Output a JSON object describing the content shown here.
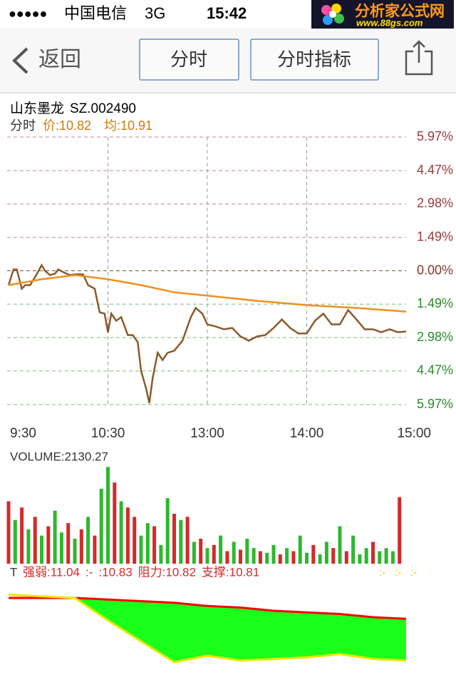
{
  "status_bar": {
    "signal": "●●●●●",
    "carrier": "中国电信",
    "network": "3G",
    "time": "15:42"
  },
  "logo": {
    "title": "分析家公式网",
    "url": "www.88gs.com"
  },
  "nav": {
    "back": "返回",
    "tabs": [
      "分时",
      "分时指标"
    ]
  },
  "stock": {
    "name": "山东墨龙",
    "code": "SZ.002490",
    "mode": "分时",
    "price_label": "价:10.82",
    "avg_label": "均:10.91"
  },
  "chart_data": [
    {
      "type": "line",
      "xlim": [
        0,
        240
      ],
      "ylim": [
        -5.97,
        5.97
      ],
      "grid": true,
      "tick_colors": {
        "up": "#9b3a3a",
        "flat": "#7a3a2a",
        "down": "#2a8a2a"
      },
      "xticks": [
        {
          "value": 0,
          "label": "9:30"
        },
        {
          "value": 60,
          "label": "10:30"
        },
        {
          "value": 120,
          "label": "13:00"
        },
        {
          "value": 180,
          "label": "14:00"
        },
        {
          "value": 240,
          "label": "15:00"
        }
      ],
      "yticks": [
        {
          "value": 5.97,
          "label": "5.97%"
        },
        {
          "value": 4.47,
          "label": "4.47%"
        },
        {
          "value": 2.98,
          "label": "2.98%"
        },
        {
          "value": 1.49,
          "label": "1.49%"
        },
        {
          "value": 0,
          "label": "0.00%"
        },
        {
          "value": -1.49,
          "label": "1.49%"
        },
        {
          "value": -2.98,
          "label": "2.98%"
        },
        {
          "value": -4.47,
          "label": "4.47%"
        },
        {
          "value": -5.97,
          "label": "5.97%"
        }
      ],
      "series": [
        {
          "color": "#8b5a2b",
          "x": [
            0,
            3,
            5,
            8,
            10,
            13,
            17,
            20,
            22,
            25,
            28,
            30,
            33,
            37,
            40,
            45,
            48,
            52,
            55,
            58,
            60,
            62,
            65,
            68,
            72,
            75,
            78,
            80,
            83,
            85,
            87,
            90,
            93,
            96,
            100,
            105,
            110,
            113,
            117,
            120,
            125,
            130,
            135,
            140,
            145,
            150,
            155,
            160,
            165,
            170,
            175,
            180,
            185,
            190,
            195,
            200,
            205,
            210,
            215,
            220,
            225,
            230,
            235,
            240
          ],
          "values": [
            -0.64,
            0.06,
            0.06,
            -0.8,
            -0.64,
            -0.64,
            -0.16,
            0.25,
            0,
            -0.19,
            -0.13,
            0.06,
            -0.06,
            -0.19,
            -0.16,
            -0.16,
            -0.64,
            -0.8,
            -1.85,
            -1.91,
            -2.74,
            -1.91,
            -2.23,
            -2.07,
            -2.87,
            -2.87,
            -3.18,
            -4.46,
            -5.25,
            -5.9,
            -4.78,
            -3.66,
            -3.98,
            -3.66,
            -3.57,
            -3.12,
            -2.07,
            -1.66,
            -1.91,
            -2.39,
            -2.48,
            -2.61,
            -2.55,
            -2.93,
            -3.12,
            -2.93,
            -2.87,
            -2.55,
            -2.17,
            -2.55,
            -2.8,
            -2.8,
            -2.23,
            -1.91,
            -2.39,
            -2.39,
            -1.75,
            -2.17,
            -2.61,
            -2.61,
            -2.74,
            -2.61,
            -2.74,
            -2.71
          ]
        },
        {
          "color": "#f0901e",
          "x": [
            0,
            20,
            40,
            60,
            80,
            90,
            100,
            120,
            150,
            180,
            210,
            240
          ],
          "values": [
            -0.64,
            -0.38,
            -0.19,
            -0.38,
            -0.64,
            -0.8,
            -0.96,
            -1.11,
            -1.34,
            -1.53,
            -1.66,
            -1.82
          ]
        }
      ]
    },
    {
      "type": "bar",
      "title": "VOLUME:2130.27",
      "xlim": [
        0,
        240
      ],
      "ylim": [
        0,
        3200
      ],
      "x": [
        0,
        4,
        8,
        12,
        16,
        20,
        24,
        28,
        32,
        36,
        40,
        44,
        48,
        52,
        56,
        60,
        64,
        68,
        72,
        76,
        80,
        84,
        88,
        92,
        96,
        100,
        104,
        108,
        112,
        116,
        120,
        124,
        128,
        132,
        136,
        140,
        144,
        148,
        152,
        156,
        160,
        164,
        168,
        172,
        176,
        180,
        184,
        188,
        192,
        196,
        200,
        204,
        208,
        212,
        216,
        220,
        224,
        228,
        232,
        236
      ],
      "values": [
        2000,
        1400,
        1800,
        1100,
        1500,
        900,
        1200,
        1700,
        1000,
        1300,
        800,
        1100,
        1500,
        900,
        2400,
        3100,
        2600,
        2000,
        1800,
        1500,
        900,
        1300,
        1200,
        600,
        2100,
        1600,
        1400,
        1500,
        700,
        800,
        500,
        600,
        900,
        400,
        700,
        450,
        800,
        500,
        400,
        350,
        600,
        300,
        500,
        400,
        900,
        350,
        600,
        300,
        700,
        500,
        1200,
        400,
        900,
        300,
        500,
        700,
        400,
        500,
        400,
        2130.27
      ],
      "colors": [
        "#d42a2a",
        "#2db82d",
        "#d42a2a",
        "#2db82d",
        "#d42a2a",
        "#2db82d",
        "#d42a2a",
        "#2db82d",
        "#2db82d",
        "#d42a2a",
        "#2db82d",
        "#d42a2a",
        "#2db82d",
        "#d42a2a",
        "#2db82d",
        "#2db82d",
        "#d42a2a",
        "#2db82d",
        "#d42a2a",
        "#d42a2a",
        "#2db82d",
        "#2db82d",
        "#d42a2a",
        "#2db82d",
        "#2db82d",
        "#d42a2a",
        "#2db82d",
        "#d42a2a",
        "#2db82d",
        "#d42a2a",
        "#2db82d",
        "#d42a2a",
        "#2db82d",
        "#d42a2a",
        "#2db82d",
        "#d42a2a",
        "#2db82d",
        "#2db82d",
        "#d42a2a",
        "#2db82d",
        "#2db82d",
        "#d42a2a",
        "#2db82d",
        "#d42a2a",
        "#2db82d",
        "#2db82d",
        "#d42a2a",
        "#2db82d",
        "#2db82d",
        "#d42a2a",
        "#2db82d",
        "#d42a2a",
        "#2db82d",
        "#2db82d",
        "#2db82d",
        "#d42a2a",
        "#2db82d",
        "#2db82d",
        "#2db82d",
        "#d42a2a"
      ]
    },
    {
      "type": "area",
      "title": "T",
      "labels": [
        "强弱:11.04",
        ":-",
        ":10.83",
        "阻力:10.82",
        "支撑:10.81"
      ],
      "label_color": "#d42a2a",
      "right_labels": [
        ":-",
        ":-",
        ":-"
      ],
      "right_color": "#e8c000",
      "fill": "#1aff1a",
      "xlim": [
        0,
        240
      ],
      "ylim": [
        10.7,
        11.3
      ],
      "x": [
        0,
        20,
        40,
        60,
        80,
        100,
        120,
        140,
        160,
        180,
        200,
        220,
        240
      ],
      "series": [
        {
          "color": "#ff0000",
          "values": [
            11.22,
            11.22,
            11.22,
            11.21,
            11.2,
            11.19,
            11.17,
            11.16,
            11.14,
            11.13,
            11.12,
            11.1,
            11.09
          ]
        },
        {
          "color": "#e8e800",
          "values": [
            11.24,
            11.23,
            11.22,
            11.08,
            10.95,
            10.82,
            10.86,
            10.83,
            10.84,
            10.85,
            10.87,
            10.84,
            10.83
          ]
        }
      ]
    }
  ]
}
